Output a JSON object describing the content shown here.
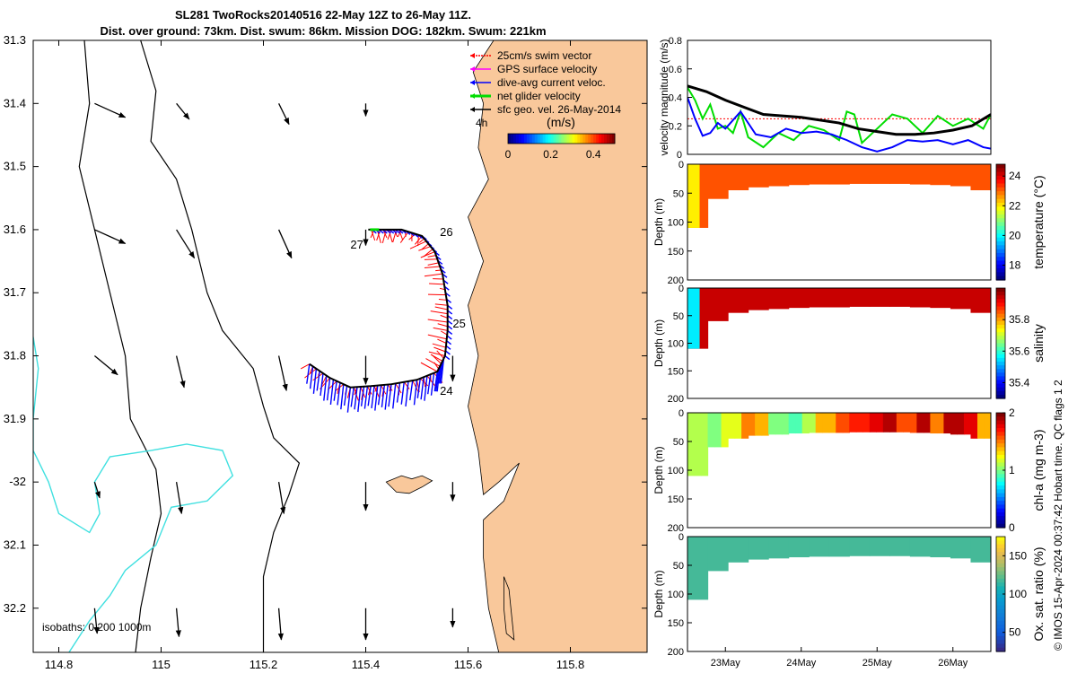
{
  "title_line1": "SL281 TwoRocks20140516 22-May 12Z to 26-May 11Z.",
  "title_line2": "Dist. over ground: 73km. Dist. swum: 86km. Mission DOG: 182km. Swum: 221km",
  "side_note": "© IMOS 15-Apr-2024 00:37:42 Hobart time. QC flags 1  2",
  "colors": {
    "land": "#f9c89b",
    "swim_vector": "#ff0000",
    "gps_velocity": "#ff00ff",
    "dive_avg": "#0000ff",
    "net_glider": "#00dd00",
    "sfc_geo": "#000000",
    "isobath_0": "#000000",
    "isobath_200": "#000000",
    "isobath_1000": "#40e0e0"
  },
  "chart_data": [
    {
      "type": "map",
      "xlim": [
        114.75,
        115.95
      ],
      "ylim": [
        31.3,
        32.27
      ],
      "y_reversed": true,
      "x_ticks": [
        114.8,
        115,
        115.2,
        115.4,
        115.6,
        115.8
      ],
      "x_tick_labels": [
        "114.8",
        "115",
        "115.2",
        "115.4",
        "115.6",
        "115.8"
      ],
      "y_ticks": [
        31.3,
        31.4,
        31.5,
        31.6,
        31.7,
        31.8,
        31.9,
        32,
        32.1,
        32.2
      ],
      "y_tick_labels": [
        "31.3",
        "31.4",
        "31.5",
        "31.6",
        "31.7",
        "31.8",
        "31.9",
        "-32",
        "32.1",
        "32.2"
      ],
      "legend_position": "top-right",
      "legend": [
        {
          "label": "25cm/s swim vector",
          "color": "#ff0000"
        },
        {
          "label": "GPS surface velocity",
          "color": "#ff00ff"
        },
        {
          "label": "dive-avg current veloc.",
          "color": "#0000ff"
        },
        {
          "label": "net glider velocity",
          "color": "#00dd00"
        },
        {
          "label": "sfc geo. vel. 26-May-2014",
          "color": "#000000"
        }
      ],
      "legend_extra_label": "4h",
      "colorbar": {
        "label": "(m/s)",
        "ticks": [
          0,
          0.2,
          0.4
        ],
        "tick_labels": [
          "0",
          "0.2",
          "0.4"
        ],
        "range": [
          0,
          0.5
        ],
        "colormap": "jet"
      },
      "isobath_label": "isobaths: 0   200  1000m",
      "track": [
        [
          115.29,
          31.813
        ],
        [
          115.33,
          31.835
        ],
        [
          115.37,
          31.85
        ],
        [
          115.41,
          31.848
        ],
        [
          115.45,
          31.845
        ],
        [
          115.5,
          31.838
        ],
        [
          115.54,
          31.825
        ],
        [
          115.555,
          31.8
        ],
        [
          115.56,
          31.76
        ],
        [
          115.56,
          31.72
        ],
        [
          115.55,
          31.67
        ],
        [
          115.535,
          31.635
        ],
        [
          115.51,
          31.61
        ],
        [
          115.47,
          31.6
        ],
        [
          115.44,
          31.6
        ],
        [
          115.405,
          31.6
        ]
      ],
      "day_labels": [
        {
          "text": "26",
          "lon": 115.545,
          "lat": 31.61
        },
        {
          "text": "27",
          "lon": 115.37,
          "lat": 31.63
        },
        {
          "text": "25",
          "lon": 115.57,
          "lat": 31.755
        },
        {
          "text": "24",
          "lon": 115.545,
          "lat": 31.862
        }
      ],
      "current_grid": {
        "points": [
          [
            114.87,
            31.4
          ],
          [
            115.03,
            31.4
          ],
          [
            115.23,
            31.4
          ],
          [
            115.4,
            31.4
          ],
          [
            114.87,
            31.6
          ],
          [
            115.03,
            31.6
          ],
          [
            115.23,
            31.6
          ],
          [
            115.4,
            31.6
          ],
          [
            114.87,
            31.8
          ],
          [
            115.03,
            31.8
          ],
          [
            115.23,
            31.8
          ],
          [
            115.4,
            31.8
          ],
          [
            115.57,
            31.8
          ],
          [
            114.87,
            32.0
          ],
          [
            115.03,
            32.0
          ],
          [
            115.23,
            32.0
          ],
          [
            115.4,
            32.0
          ],
          [
            115.57,
            32.0
          ],
          [
            114.87,
            32.2
          ],
          [
            115.03,
            32.2
          ],
          [
            115.23,
            32.2
          ],
          [
            115.4,
            32.2
          ],
          [
            115.57,
            32.2
          ]
        ],
        "vectors": [
          [
            0.06,
            0.022
          ],
          [
            0.025,
            0.025
          ],
          [
            0.02,
            0.033
          ],
          [
            0.0,
            0.02
          ],
          [
            0.06,
            0.022
          ],
          [
            0.035,
            0.045
          ],
          [
            0.025,
            0.045
          ],
          [
            0.0,
            0.025
          ],
          [
            0.045,
            0.03
          ],
          [
            0.015,
            0.05
          ],
          [
            0.015,
            0.055
          ],
          [
            0.0,
            0.045
          ],
          [
            0.0,
            0.04
          ],
          [
            0.01,
            0.025
          ],
          [
            0.01,
            0.05
          ],
          [
            0.01,
            0.05
          ],
          [
            0.0,
            0.045
          ],
          [
            0.0,
            0.03
          ],
          [
            0.005,
            0.04
          ],
          [
            0.005,
            0.045
          ],
          [
            0.005,
            0.05
          ],
          [
            0.0,
            0.05
          ],
          [
            0.0,
            0.03
          ]
        ]
      }
    },
    {
      "type": "line",
      "ylabel": "velocity magnitude (m/s)",
      "ylim": [
        0,
        0.8
      ],
      "y_ticks": [
        0,
        0.2,
        0.4,
        0.6,
        0.8
      ],
      "x_range_days": [
        22.5,
        26.5
      ],
      "x_ticks": [
        23,
        24,
        25,
        26
      ],
      "x_tick_labels": [
        "23May",
        "24May",
        "25May",
        "26May"
      ],
      "series": [
        {
          "color": "#ff0000",
          "style": "dotted",
          "x": [
            22.5,
            23.0,
            23.5,
            24.0,
            24.5,
            25.0,
            25.5,
            26.0,
            26.5
          ],
          "values": [
            0.25,
            0.25,
            0.25,
            0.25,
            0.25,
            0.25,
            0.25,
            0.25,
            0.25
          ]
        },
        {
          "color": "#00dd00",
          "x": [
            22.5,
            22.6,
            22.7,
            22.8,
            22.9,
            23.0,
            23.1,
            23.2,
            23.3,
            23.5,
            23.7,
            23.9,
            24.1,
            24.3,
            24.5,
            24.6,
            24.7,
            24.8,
            25.0,
            25.2,
            25.4,
            25.6,
            25.8,
            26.0,
            26.2,
            26.4,
            26.5
          ],
          "values": [
            0.47,
            0.38,
            0.25,
            0.35,
            0.18,
            0.2,
            0.15,
            0.3,
            0.12,
            0.05,
            0.15,
            0.1,
            0.2,
            0.17,
            0.1,
            0.3,
            0.28,
            0.08,
            0.18,
            0.28,
            0.25,
            0.15,
            0.27,
            0.2,
            0.25,
            0.18,
            0.28
          ]
        },
        {
          "color": "#0000ff",
          "x": [
            22.5,
            22.6,
            22.7,
            22.8,
            22.9,
            23.0,
            23.2,
            23.4,
            23.6,
            23.8,
            24.0,
            24.2,
            24.4,
            24.6,
            24.8,
            25.0,
            25.2,
            25.4,
            25.6,
            25.8,
            26.0,
            26.2,
            26.4,
            26.5
          ],
          "values": [
            0.4,
            0.25,
            0.13,
            0.15,
            0.22,
            0.18,
            0.3,
            0.14,
            0.12,
            0.18,
            0.15,
            0.16,
            0.14,
            0.1,
            0.05,
            0.02,
            0.05,
            0.1,
            0.09,
            0.1,
            0.07,
            0.1,
            0.05,
            0.04
          ]
        },
        {
          "color": "#000000",
          "x": [
            22.5,
            22.75,
            23.0,
            23.25,
            23.5,
            23.75,
            24.0,
            24.25,
            24.5,
            24.75,
            25.0,
            25.25,
            25.5,
            25.75,
            26.0,
            26.25,
            26.5
          ],
          "values": [
            0.48,
            0.44,
            0.38,
            0.33,
            0.28,
            0.27,
            0.26,
            0.24,
            0.22,
            0.18,
            0.16,
            0.14,
            0.14,
            0.15,
            0.17,
            0.2,
            0.28
          ]
        }
      ]
    },
    {
      "type": "heatmap",
      "ylabel": "Depth (m)",
      "ylim": [
        200,
        0
      ],
      "y_ticks": [
        0,
        50,
        100,
        150,
        200
      ],
      "colorbar_label": "temperature (°C)",
      "colorbar_ticks": [
        18,
        20,
        22,
        24
      ],
      "colorbar_range": [
        17,
        24.8
      ],
      "profile_depth_max_m": [
        110,
        60,
        45,
        40,
        38,
        36,
        35,
        35,
        34,
        34,
        34,
        35,
        36,
        38,
        45
      ],
      "shallow_value": 23.2,
      "deep_value": 23.0,
      "nearshore_value": 22.0
    },
    {
      "type": "heatmap",
      "ylabel": "Depth (m)",
      "ylim": [
        200,
        0
      ],
      "y_ticks": [
        0,
        50,
        100,
        150,
        200
      ],
      "colorbar_label": "salinity",
      "colorbar_ticks": [
        35.4,
        35.6,
        35.8
      ],
      "colorbar_range": [
        35.3,
        36.0
      ],
      "profile_depth_max_m": [
        110,
        60,
        45,
        40,
        38,
        36,
        35,
        35,
        34,
        34,
        34,
        35,
        36,
        38,
        45
      ],
      "value": 35.95,
      "nearshore_value": 35.55
    },
    {
      "type": "heatmap",
      "ylabel": "Depth (m)",
      "ylim": [
        200,
        0
      ],
      "y_ticks": [
        0,
        50,
        100,
        150,
        200
      ],
      "colorbar_label": "chl-a (mg m-3)",
      "colorbar_ticks": [
        0,
        1,
        2
      ],
      "colorbar_range": [
        0,
        2
      ],
      "profile_depth_max_m": [
        110,
        60,
        45,
        40,
        38,
        36,
        35,
        35,
        34,
        34,
        34,
        35,
        36,
        38,
        45
      ],
      "along_track_values": [
        1.1,
        1.0,
        1.2,
        1.5,
        1.4,
        1.0,
        0.9,
        1.1,
        1.4,
        1.6,
        1.7,
        1.8,
        1.9,
        1.6,
        1.9,
        1.5,
        1.9,
        1.8,
        1.4
      ]
    },
    {
      "type": "heatmap",
      "ylabel": "Depth (m)",
      "ylim": [
        200,
        0
      ],
      "y_ticks": [
        0,
        50,
        100,
        150,
        200
      ],
      "colorbar_label": "Ox. sat. ratio (%)",
      "colorbar_ticks": [
        50,
        100,
        150
      ],
      "colorbar_range": [
        25,
        175
      ],
      "profile_depth_max_m": [
        110,
        60,
        45,
        40,
        38,
        36,
        35,
        35,
        34,
        34,
        34,
        35,
        36,
        38,
        45
      ],
      "value": 118
    }
  ]
}
